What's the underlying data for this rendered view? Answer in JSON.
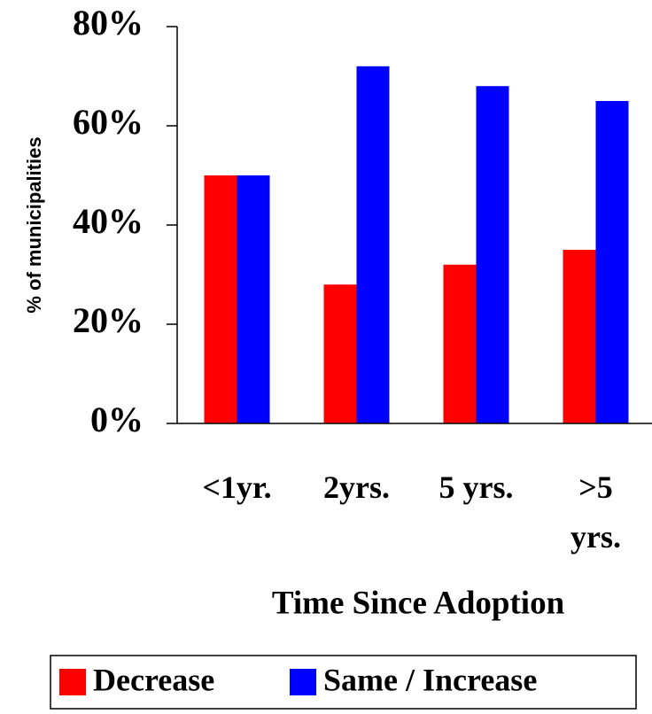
{
  "chart_data": {
    "type": "bar",
    "y_label": "% of municipalities",
    "x_label": "Time Since Adoption",
    "categories": [
      "<1yr.",
      "2yrs.",
      "5 yrs.",
      ">5 yrs."
    ],
    "series": [
      {
        "name": "Decrease",
        "color": "#ff0000",
        "values": [
          50,
          28,
          32,
          35
        ]
      },
      {
        "name": "Same / Increase",
        "color": "#0000ff",
        "values": [
          50,
          72,
          68,
          65
        ]
      }
    ],
    "ylim": [
      0,
      80
    ],
    "yticks": [
      {
        "value": 0,
        "label": "0%"
      },
      {
        "value": 20,
        "label": "20%"
      },
      {
        "value": 40,
        "label": "40%"
      },
      {
        "value": 60,
        "label": "60%"
      },
      {
        "value": 80,
        "label": "80%"
      }
    ],
    "legend": "bottom"
  }
}
